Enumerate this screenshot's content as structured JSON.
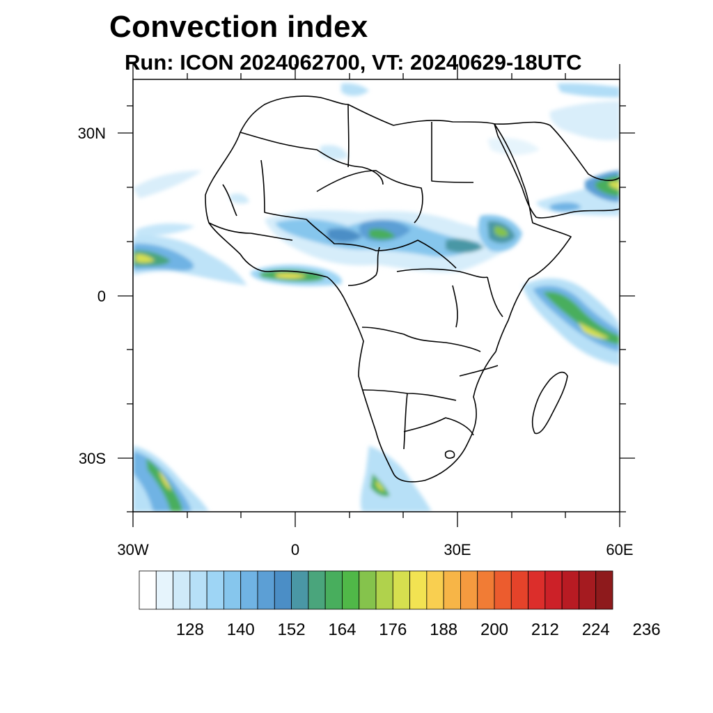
{
  "title": "Convection index",
  "subtitle": "Run: ICON 2024062700,  VT: 20240629-18UTC",
  "map": {
    "lon_range": [
      -30,
      60
    ],
    "lat_range": [
      -40,
      40
    ],
    "lat_ticks": [
      {
        "value": 30,
        "label": "30N"
      },
      {
        "value": 0,
        "label": "0"
      },
      {
        "value": -30,
        "label": "30S"
      }
    ],
    "lon_ticks": [
      {
        "value": -30,
        "label": "30W"
      },
      {
        "value": 0,
        "label": "0"
      },
      {
        "value": 30,
        "label": "30E"
      },
      {
        "value": 60,
        "label": "60E"
      }
    ]
  },
  "colorbar": {
    "colors": [
      "#ffffff",
      "#e6f4fc",
      "#cfeaf9",
      "#b7e0f7",
      "#9ed5f5",
      "#86c6ed",
      "#70b3e4",
      "#5c9fd5",
      "#4b8ec6",
      "#4a97a5",
      "#4aa57c",
      "#48ae5d",
      "#50b848",
      "#85c34c",
      "#b0d24c",
      "#d6df4f",
      "#f2e352",
      "#f9cf50",
      "#f7b547",
      "#f59a3f",
      "#f17c35",
      "#ec5c2e",
      "#e5432a",
      "#dc2e2b",
      "#cc2128",
      "#b81b23",
      "#a51b20",
      "#8e1a1c"
    ],
    "labels": [
      "128",
      "140",
      "152",
      "164",
      "176",
      "188",
      "200",
      "212",
      "224",
      "236"
    ]
  }
}
